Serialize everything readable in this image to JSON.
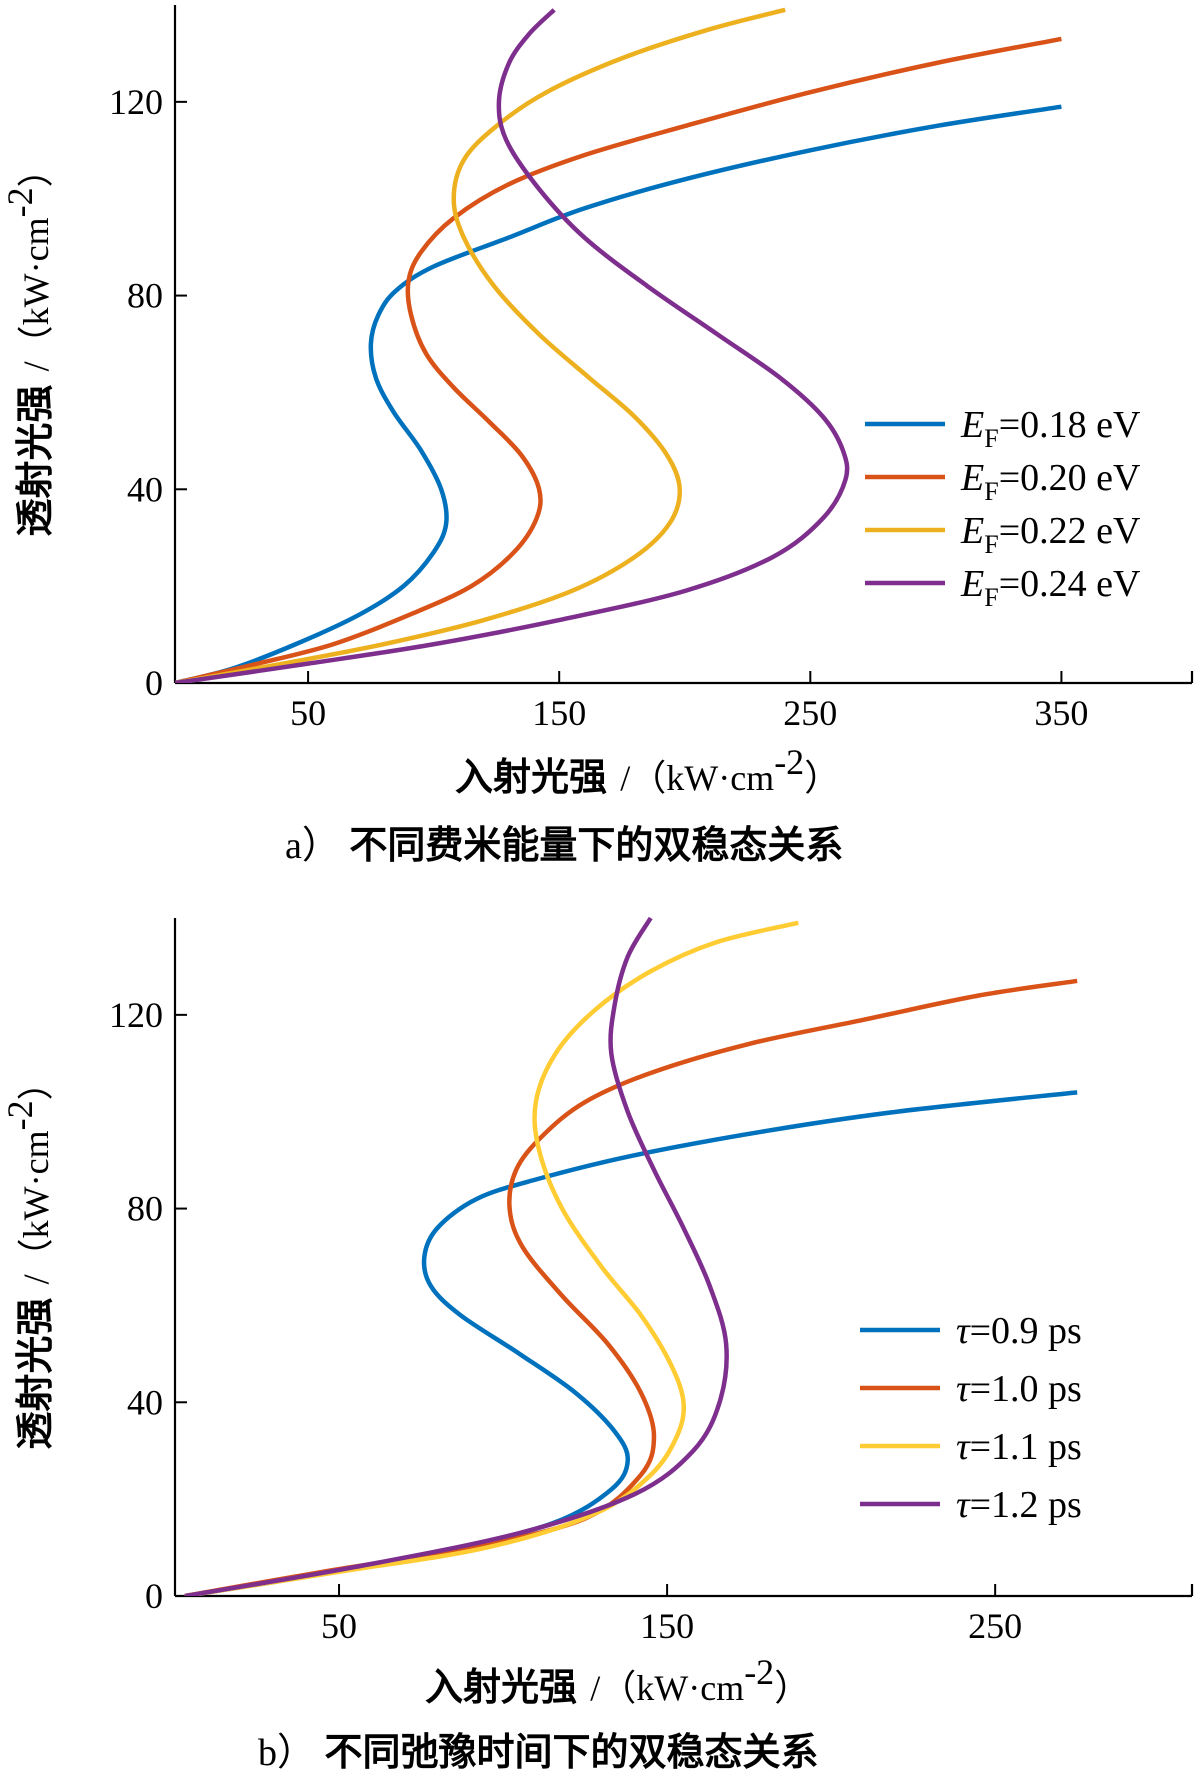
{
  "chart_data": [
    {
      "type": "line",
      "caption_letter": "a）",
      "caption": "不同费米能量下的双稳态关系",
      "xlabel": "入射光强",
      "xlabel_unit": "/（kW·cm",
      "xlabel_unit_exp": "-2",
      "xlabel_unit_close": "）",
      "ylabel": "透射光强",
      "ylabel_unit": "/（kW·cm",
      "ylabel_unit_exp": "-2",
      "ylabel_unit_close": "）",
      "xlim": [
        -3,
        402
      ],
      "ylim": [
        0,
        140
      ],
      "xticks": [
        50,
        150,
        250,
        350
      ],
      "xtick_labels": [
        "50",
        "150",
        "250",
        "350"
      ],
      "yticks": [
        0,
        40,
        80,
        120
      ],
      "ytick_labels": [
        "0",
        "40",
        "80",
        "120"
      ],
      "legend_position": "right",
      "series": [
        {
          "name_symbol": "E",
          "name_sub": "F",
          "name_rest": "=0.18 eV",
          "color": "#0072BD",
          "points": [
            [
              -3,
              0
            ],
            [
              20,
              3
            ],
            [
              45,
              8
            ],
            [
              70,
              14
            ],
            [
              88,
              20
            ],
            [
              100,
              27
            ],
            [
              105,
              33
            ],
            [
              103,
              40
            ],
            [
              95,
              48
            ],
            [
              84,
              56
            ],
            [
              77,
              63
            ],
            [
              75,
              70
            ],
            [
              78,
              76
            ],
            [
              85,
              81
            ],
            [
              100,
              86
            ],
            [
              130,
              92
            ],
            [
              160,
              98
            ],
            [
              200,
              104
            ],
            [
              250,
              110
            ],
            [
              300,
              115
            ],
            [
              350,
              119
            ]
          ]
        },
        {
          "name_symbol": "E",
          "name_sub": "F",
          "name_rest": "=0.20 eV",
          "color": "#D95319",
          "points": [
            [
              -3,
              0
            ],
            [
              30,
              4
            ],
            [
              60,
              8
            ],
            [
              90,
              14
            ],
            [
              115,
              20
            ],
            [
              132,
              27
            ],
            [
              141,
              34
            ],
            [
              142,
              40
            ],
            [
              135,
              47
            ],
            [
              122,
              54
            ],
            [
              108,
              61
            ],
            [
              97,
              68
            ],
            [
              91,
              76
            ],
            [
              90,
              83
            ],
            [
              95,
              89
            ],
            [
              108,
              96
            ],
            [
              130,
              103
            ],
            [
              160,
              109
            ],
            [
              200,
              115
            ],
            [
              250,
              122
            ],
            [
              300,
              128
            ],
            [
              350,
              133
            ]
          ]
        },
        {
          "name_symbol": "E",
          "name_sub": "F",
          "name_rest": "=0.22 eV",
          "color": "#EDB120",
          "points": [
            [
              -3,
              0
            ],
            [
              40,
              4
            ],
            [
              80,
              8
            ],
            [
              120,
              13
            ],
            [
              155,
              19
            ],
            [
              180,
              26
            ],
            [
              194,
              33
            ],
            [
              198,
              40
            ],
            [
              193,
              47
            ],
            [
              180,
              55
            ],
            [
              162,
              63
            ],
            [
              142,
              72
            ],
            [
              124,
              82
            ],
            [
              112,
              92
            ],
            [
              108,
              100
            ],
            [
              112,
              108
            ],
            [
              125,
              115
            ],
            [
              145,
              122
            ],
            [
              175,
              129
            ],
            [
              210,
              135
            ],
            [
              240,
              139
            ]
          ]
        },
        {
          "name_symbol": "E",
          "name_sub": "F",
          "name_rest": "=0.24 eV",
          "color": "#7E2F8E",
          "points": [
            [
              -3,
              0
            ],
            [
              50,
              4
            ],
            [
              100,
              8
            ],
            [
              150,
              13
            ],
            [
              200,
              19
            ],
            [
              235,
              26
            ],
            [
              255,
              34
            ],
            [
              264,
              42
            ],
            [
              263,
              48
            ],
            [
              255,
              55
            ],
            [
              238,
              63
            ],
            [
              213,
              72
            ],
            [
              185,
              82
            ],
            [
              160,
              92
            ],
            [
              142,
              102
            ],
            [
              129,
              112
            ],
            [
              126,
              120
            ],
            [
              130,
              128
            ],
            [
              138,
              134
            ],
            [
              148,
              139
            ]
          ]
        }
      ]
    },
    {
      "type": "line",
      "caption_letter": "b）",
      "caption": "不同弛豫时间下的双稳态关系",
      "xlabel": "入射光强",
      "xlabel_unit": "/（kW·cm",
      "xlabel_unit_exp": "-2",
      "xlabel_unit_close": "）",
      "ylabel": "透射光强",
      "ylabel_unit": "/（kW·cm",
      "ylabel_unit_exp": "-2",
      "ylabel_unit_close": "）",
      "xlim": [
        0,
        310
      ],
      "ylim": [
        0,
        140
      ],
      "xticks": [
        50,
        150,
        250
      ],
      "xtick_labels": [
        "50",
        "150",
        "250"
      ],
      "yticks": [
        0,
        40,
        80,
        120
      ],
      "ytick_labels": [
        "0",
        "40",
        "80",
        "120"
      ],
      "legend_position": "right",
      "series": [
        {
          "name_symbol": "τ",
          "name_rest": "=0.9 ps",
          "color": "#0072BD",
          "points": [
            [
              3,
              0
            ],
            [
              40,
              4
            ],
            [
              80,
              9
            ],
            [
              115,
              15
            ],
            [
              133,
              22
            ],
            [
              138,
              28
            ],
            [
              134,
              34
            ],
            [
              122,
              42
            ],
            [
              105,
              50
            ],
            [
              87,
              58
            ],
            [
              78,
              64
            ],
            [
              76,
              70
            ],
            [
              80,
              76
            ],
            [
              92,
              82
            ],
            [
              110,
              86
            ],
            [
              140,
              91
            ],
            [
              180,
              96
            ],
            [
              220,
              100
            ],
            [
              275,
              104
            ]
          ]
        },
        {
          "name_symbol": "τ",
          "name_rest": "=1.0 ps",
          "color": "#D95319",
          "points": [
            [
              3,
              0
            ],
            [
              45,
              5
            ],
            [
              90,
              10
            ],
            [
              125,
              16
            ],
            [
              142,
              25
            ],
            [
              146,
              33
            ],
            [
              142,
              42
            ],
            [
              132,
              52
            ],
            [
              118,
              62
            ],
            [
              106,
              72
            ],
            [
              102,
              80
            ],
            [
              104,
              88
            ],
            [
              112,
              95
            ],
            [
              125,
              102
            ],
            [
              145,
              108
            ],
            [
              175,
              114
            ],
            [
              210,
              119
            ],
            [
              245,
              124
            ],
            [
              275,
              127
            ]
          ]
        },
        {
          "name_symbol": "τ",
          "name_rest": "=1.1 ps",
          "color": "#FFCC33",
          "points": [
            [
              3,
              0
            ],
            [
              50,
              5
            ],
            [
              95,
              10
            ],
            [
              128,
              17
            ],
            [
              145,
              25
            ],
            [
              153,
              33
            ],
            [
              155,
              40
            ],
            [
              151,
              48
            ],
            [
              142,
              58
            ],
            [
              130,
              68
            ],
            [
              118,
              80
            ],
            [
              111,
              92
            ],
            [
              110,
              102
            ],
            [
              116,
              112
            ],
            [
              128,
              121
            ],
            [
              145,
              129
            ],
            [
              165,
              135
            ],
            [
              190,
              139
            ]
          ]
        },
        {
          "name_symbol": "τ",
          "name_rest": "=1.2 ps",
          "color": "#7E2F8E",
          "points": [
            [
              3,
              0
            ],
            [
              55,
              6
            ],
            [
              105,
              13
            ],
            [
              140,
              21
            ],
            [
              158,
              30
            ],
            [
              166,
              40
            ],
            [
              168,
              52
            ],
            [
              163,
              64
            ],
            [
              155,
              76
            ],
            [
              146,
              88
            ],
            [
              138,
              100
            ],
            [
              133,
              112
            ],
            [
              134,
              122
            ],
            [
              138,
              132
            ],
            [
              145,
              140
            ]
          ]
        }
      ]
    }
  ]
}
